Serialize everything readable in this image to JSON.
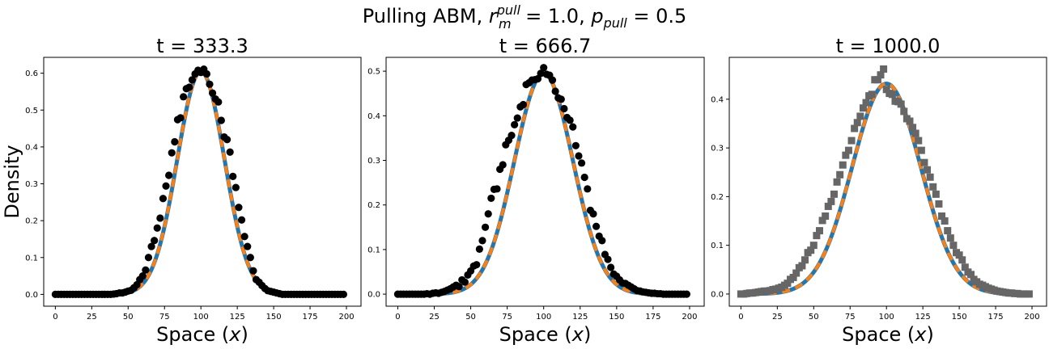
{
  "figure": {
    "suptitle": {
      "prefix": "Pulling ABM, ",
      "r_base": "r",
      "r_sup": "pull",
      "r_sub": "m",
      "r_value": " = 1.0, ",
      "p_base": "p",
      "p_sub": "pull",
      "p_value": " = 0.5"
    }
  },
  "chart_data": [
    {
      "type": "line+scatter",
      "title": "t = 333.3",
      "xlabel": "Space (x)",
      "ylabel": "Density",
      "xlim": [
        -8,
        210
      ],
      "ylim": [
        -0.032,
        0.643
      ],
      "xticks": [
        0,
        25,
        50,
        75,
        100,
        125,
        150,
        175,
        200
      ],
      "yticks": [
        0.0,
        0.1,
        0.2,
        0.3,
        0.4,
        0.5,
        0.6
      ],
      "ytick_labels": [
        "0.0",
        "0.1",
        "0.2",
        "0.3",
        "0.4",
        "0.5",
        "0.6"
      ],
      "curve": {
        "peak": 0.605,
        "center": 100,
        "sigma": 16.2
      },
      "colors": {
        "solid": "#1f77b4",
        "dashed": "#ff7f0e",
        "markers": "#000000"
      },
      "marker": "circle",
      "points": [
        [
          0,
          0.0
        ],
        [
          2,
          0.0
        ],
        [
          4,
          0.0
        ],
        [
          6,
          0.0
        ],
        [
          8,
          0.0
        ],
        [
          10,
          0.0
        ],
        [
          12,
          0.0
        ],
        [
          14,
          0.0
        ],
        [
          16,
          0.0
        ],
        [
          18,
          0.0
        ],
        [
          20,
          0.0
        ],
        [
          22,
          0.0
        ],
        [
          24,
          0.0
        ],
        [
          26,
          0.0
        ],
        [
          28,
          0.0
        ],
        [
          30,
          0.0
        ],
        [
          32,
          0.0
        ],
        [
          34,
          0.0
        ],
        [
          36,
          0.0
        ],
        [
          38,
          0.0
        ],
        [
          40,
          0.001
        ],
        [
          42,
          0.002
        ],
        [
          44,
          0.004
        ],
        [
          46,
          0.004
        ],
        [
          48,
          0.006
        ],
        [
          50,
          0.009
        ],
        [
          52,
          0.011
        ],
        [
          54,
          0.018
        ],
        [
          56,
          0.026
        ],
        [
          58,
          0.04
        ],
        [
          60,
          0.05
        ],
        [
          62,
          0.066
        ],
        [
          64,
          0.1
        ],
        [
          66,
          0.13
        ],
        [
          68,
          0.146
        ],
        [
          70,
          0.18
        ],
        [
          72,
          0.207
        ],
        [
          74,
          0.26
        ],
        [
          76,
          0.294
        ],
        [
          78,
          0.323
        ],
        [
          80,
          0.384
        ],
        [
          82,
          0.414
        ],
        [
          84,
          0.474
        ],
        [
          86,
          0.479
        ],
        [
          88,
          0.536
        ],
        [
          90,
          0.558
        ],
        [
          92,
          0.562
        ],
        [
          94,
          0.582
        ],
        [
          96,
          0.598
        ],
        [
          98,
          0.608
        ],
        [
          100,
          0.602
        ],
        [
          102,
          0.611
        ],
        [
          104,
          0.598
        ],
        [
          106,
          0.57
        ],
        [
          108,
          0.546
        ],
        [
          110,
          0.53
        ],
        [
          112,
          0.522
        ],
        [
          114,
          0.472
        ],
        [
          116,
          0.427
        ],
        [
          118,
          0.42
        ],
        [
          120,
          0.386
        ],
        [
          122,
          0.32
        ],
        [
          124,
          0.29
        ],
        [
          126,
          0.236
        ],
        [
          128,
          0.202
        ],
        [
          130,
          0.157
        ],
        [
          132,
          0.13
        ],
        [
          134,
          0.1
        ],
        [
          136,
          0.064
        ],
        [
          138,
          0.04
        ],
        [
          140,
          0.033
        ],
        [
          142,
          0.024
        ],
        [
          144,
          0.016
        ],
        [
          146,
          0.01
        ],
        [
          148,
          0.008
        ],
        [
          150,
          0.006
        ],
        [
          152,
          0.004
        ],
        [
          154,
          0.002
        ],
        [
          156,
          0.0
        ],
        [
          158,
          0.0
        ],
        [
          160,
          0.0
        ],
        [
          162,
          0.0
        ],
        [
          164,
          0.0
        ],
        [
          166,
          0.0
        ],
        [
          168,
          0.0
        ],
        [
          170,
          0.0
        ],
        [
          172,
          0.0
        ],
        [
          174,
          0.0
        ],
        [
          176,
          0.0
        ],
        [
          178,
          0.0
        ],
        [
          180,
          0.0
        ],
        [
          182,
          0.0
        ],
        [
          184,
          0.0
        ],
        [
          186,
          0.0
        ],
        [
          188,
          0.0
        ],
        [
          190,
          0.0
        ],
        [
          192,
          0.0
        ],
        [
          194,
          0.0
        ],
        [
          196,
          0.0
        ],
        [
          198,
          0.0
        ]
      ]
    },
    {
      "type": "line+scatter",
      "title": "t = 666.7",
      "xlabel": "Space (x)",
      "ylabel": "",
      "xlim": [
        -8,
        210
      ],
      "ylim": [
        -0.027,
        0.531
      ],
      "xticks": [
        0,
        25,
        50,
        75,
        100,
        125,
        150,
        175,
        200
      ],
      "yticks": [
        0.0,
        0.1,
        0.2,
        0.3,
        0.4,
        0.5
      ],
      "ytick_labels": [
        "0.0",
        "0.1",
        "0.2",
        "0.3",
        "0.4",
        "0.5"
      ],
      "curve": {
        "peak": 0.495,
        "center": 100,
        "sigma": 20.0
      },
      "colors": {
        "solid": "#1f77b4",
        "dashed": "#ff7f0e",
        "markers": "#000000"
      },
      "marker": "circle",
      "points": [
        [
          0,
          0.0
        ],
        [
          2,
          0.0
        ],
        [
          4,
          0.0
        ],
        [
          6,
          0.0
        ],
        [
          8,
          0.0
        ],
        [
          10,
          0.0
        ],
        [
          12,
          0.0
        ],
        [
          14,
          0.0
        ],
        [
          16,
          0.0
        ],
        [
          18,
          0.0
        ],
        [
          20,
          0.001
        ],
        [
          22,
          0.0
        ],
        [
          24,
          0.002
        ],
        [
          26,
          0.003
        ],
        [
          28,
          0.002
        ],
        [
          30,
          0.004
        ],
        [
          32,
          0.006
        ],
        [
          34,
          0.009
        ],
        [
          36,
          0.012
        ],
        [
          38,
          0.016
        ],
        [
          40,
          0.02
        ],
        [
          42,
          0.017
        ],
        [
          44,
          0.032
        ],
        [
          46,
          0.027
        ],
        [
          48,
          0.043
        ],
        [
          50,
          0.052
        ],
        [
          52,
          0.063
        ],
        [
          54,
          0.066
        ],
        [
          56,
          0.101
        ],
        [
          58,
          0.12
        ],
        [
          60,
          0.15
        ],
        [
          62,
          0.18
        ],
        [
          64,
          0.215
        ],
        [
          66,
          0.235
        ],
        [
          68,
          0.236
        ],
        [
          70,
          0.28
        ],
        [
          72,
          0.29
        ],
        [
          74,
          0.335
        ],
        [
          76,
          0.345
        ],
        [
          78,
          0.356
        ],
        [
          80,
          0.38
        ],
        [
          82,
          0.395
        ],
        [
          84,
          0.42
        ],
        [
          86,
          0.425
        ],
        [
          88,
          0.47
        ],
        [
          90,
          0.474
        ],
        [
          92,
          0.48
        ],
        [
          94,
          0.481
        ],
        [
          96,
          0.483
        ],
        [
          98,
          0.495
        ],
        [
          100,
          0.508
        ],
        [
          102,
          0.493
        ],
        [
          104,
          0.491
        ],
        [
          106,
          0.48
        ],
        [
          108,
          0.455
        ],
        [
          110,
          0.44
        ],
        [
          112,
          0.437
        ],
        [
          114,
          0.416
        ],
        [
          116,
          0.396
        ],
        [
          118,
          0.39
        ],
        [
          120,
          0.375
        ],
        [
          122,
          0.333
        ],
        [
          124,
          0.31
        ],
        [
          126,
          0.294
        ],
        [
          128,
          0.262
        ],
        [
          130,
          0.236
        ],
        [
          132,
          0.188
        ],
        [
          134,
          0.18
        ],
        [
          136,
          0.152
        ],
        [
          138,
          0.13
        ],
        [
          140,
          0.12
        ],
        [
          142,
          0.089
        ],
        [
          144,
          0.078
        ],
        [
          146,
          0.06
        ],
        [
          148,
          0.045
        ],
        [
          150,
          0.04
        ],
        [
          152,
          0.032
        ],
        [
          154,
          0.025
        ],
        [
          156,
          0.024
        ],
        [
          158,
          0.02
        ],
        [
          160,
          0.016
        ],
        [
          162,
          0.012
        ],
        [
          164,
          0.008
        ],
        [
          166,
          0.007
        ],
        [
          168,
          0.005
        ],
        [
          170,
          0.004
        ],
        [
          172,
          0.003
        ],
        [
          174,
          0.002
        ],
        [
          176,
          0.002
        ],
        [
          178,
          0.001
        ],
        [
          180,
          0.001
        ],
        [
          182,
          0.0
        ],
        [
          184,
          0.0
        ],
        [
          186,
          0.0
        ],
        [
          188,
          0.0
        ],
        [
          190,
          0.0
        ],
        [
          192,
          0.0
        ],
        [
          194,
          0.0
        ],
        [
          196,
          0.0
        ],
        [
          198,
          0.0
        ]
      ]
    },
    {
      "type": "line+scatter",
      "title": "t = 1000.0",
      "xlabel": "Space (x)",
      "ylabel": "",
      "xlim": [
        -8,
        210
      ],
      "ylim": [
        -0.025,
        0.486
      ],
      "xticks": [
        0,
        25,
        50,
        75,
        100,
        125,
        150,
        175,
        200
      ],
      "yticks": [
        0.0,
        0.1,
        0.2,
        0.3,
        0.4
      ],
      "ytick_labels": [
        "0.0",
        "0.1",
        "0.2",
        "0.3",
        "0.4"
      ],
      "curve": {
        "peak": 0.432,
        "center": 100,
        "sigma": 23.5
      },
      "colors": {
        "solid": "#1f77b4",
        "dashed": "#ff7f0e",
        "markers": "#666666"
      },
      "marker": "square",
      "points": [
        [
          0,
          0.0
        ],
        [
          2,
          0.0
        ],
        [
          4,
          0.001
        ],
        [
          6,
          0.002
        ],
        [
          8,
          0.002
        ],
        [
          10,
          0.003
        ],
        [
          12,
          0.004
        ],
        [
          14,
          0.005
        ],
        [
          16,
          0.006
        ],
        [
          18,
          0.006
        ],
        [
          20,
          0.007
        ],
        [
          22,
          0.009
        ],
        [
          24,
          0.01
        ],
        [
          26,
          0.012
        ],
        [
          28,
          0.014
        ],
        [
          30,
          0.018
        ],
        [
          32,
          0.022
        ],
        [
          34,
          0.03
        ],
        [
          36,
          0.034
        ],
        [
          38,
          0.043
        ],
        [
          40,
          0.054
        ],
        [
          42,
          0.058
        ],
        [
          44,
          0.07
        ],
        [
          46,
          0.085
        ],
        [
          48,
          0.09
        ],
        [
          50,
          0.1
        ],
        [
          52,
          0.12
        ],
        [
          54,
          0.13
        ],
        [
          56,
          0.151
        ],
        [
          58,
          0.16
        ],
        [
          60,
          0.18
        ],
        [
          62,
          0.19
        ],
        [
          64,
          0.205
        ],
        [
          66,
          0.23
        ],
        [
          68,
          0.245
        ],
        [
          70,
          0.265
        ],
        [
          72,
          0.285
        ],
        [
          74,
          0.295
        ],
        [
          76,
          0.315
        ],
        [
          78,
          0.34
        ],
        [
          80,
          0.352
        ],
        [
          82,
          0.365
        ],
        [
          84,
          0.382
        ],
        [
          86,
          0.393
        ],
        [
          88,
          0.407
        ],
        [
          90,
          0.41
        ],
        [
          92,
          0.44
        ],
        [
          94,
          0.44
        ],
        [
          96,
          0.45
        ],
        [
          98,
          0.462
        ],
        [
          100,
          0.42
        ],
        [
          102,
          0.412
        ],
        [
          104,
          0.41
        ],
        [
          106,
          0.396
        ],
        [
          108,
          0.395
        ],
        [
          110,
          0.39
        ],
        [
          112,
          0.375
        ],
        [
          114,
          0.36
        ],
        [
          116,
          0.355
        ],
        [
          118,
          0.342
        ],
        [
          120,
          0.33
        ],
        [
          122,
          0.315
        ],
        [
          124,
          0.295
        ],
        [
          126,
          0.27
        ],
        [
          128,
          0.255
        ],
        [
          130,
          0.24
        ],
        [
          132,
          0.22
        ],
        [
          134,
          0.205
        ],
        [
          136,
          0.185
        ],
        [
          138,
          0.16
        ],
        [
          140,
          0.15
        ],
        [
          142,
          0.13
        ],
        [
          144,
          0.115
        ],
        [
          146,
          0.1
        ],
        [
          148,
          0.085
        ],
        [
          150,
          0.08
        ],
        [
          152,
          0.07
        ],
        [
          154,
          0.055
        ],
        [
          156,
          0.045
        ],
        [
          158,
          0.04
        ],
        [
          160,
          0.03
        ],
        [
          162,
          0.025
        ],
        [
          164,
          0.02
        ],
        [
          166,
          0.018
        ],
        [
          168,
          0.015
        ],
        [
          170,
          0.012
        ],
        [
          172,
          0.01
        ],
        [
          174,
          0.008
        ],
        [
          176,
          0.006
        ],
        [
          178,
          0.005
        ],
        [
          180,
          0.004
        ],
        [
          182,
          0.003
        ],
        [
          184,
          0.002
        ],
        [
          186,
          0.002
        ],
        [
          188,
          0.001
        ],
        [
          190,
          0.001
        ],
        [
          192,
          0.0
        ],
        [
          194,
          0.0
        ],
        [
          196,
          0.0
        ],
        [
          198,
          0.0
        ]
      ]
    }
  ]
}
